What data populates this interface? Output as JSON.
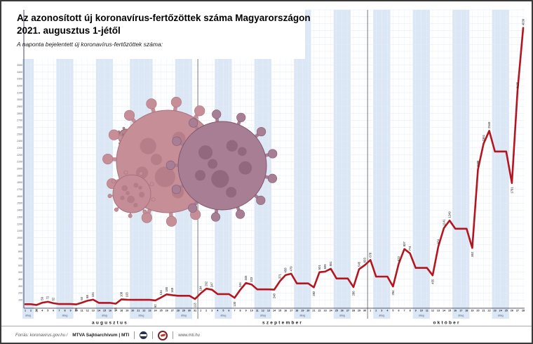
{
  "page": {
    "title_line1": "Az azonosított új koronavírus-fertőzöttek száma Magyarországon",
    "title_line2": "2021. augusztus 1-jétől",
    "subtitle": "A naponta bejelentett új koronavírus-fertőzöttek száma:"
  },
  "footer": {
    "source_prefix": "Forrás: koronavirus.gov.hu /",
    "source_bold": "MTVA Sajtóarchívum | MTI",
    "website": "www.mti.hu",
    "logos": [
      "mtva-logo",
      "mti-logo"
    ]
  },
  "colors": {
    "line": "#b5151f",
    "band": "#dbe7f4",
    "grid_h": "#e3ebf7",
    "grid_v": "#eaf1f9",
    "axis": "#56566e",
    "separator": "#6b6b6b",
    "label_text": "#111111",
    "tick_text": "#5a5a6a",
    "virus_left_body": "#c68f98",
    "virus_left_dark": "#a9717c",
    "virus_right_body": "#a77e94",
    "virus_right_dark": "#82566c"
  },
  "chart_data": {
    "type": "line",
    "title": "Az azonosított új koronavírus-fertőzöttek száma Magyarországon 2021. augusztus 1-jétől",
    "xlabel": "",
    "ylabel": "",
    "ylim": [
      0,
      4300
    ],
    "y_tick_step": 100,
    "grid": true,
    "legend": false,
    "avg_label": "átlag",
    "months": [
      {
        "name": "augusztus",
        "days": 31
      },
      {
        "name": "szeptember",
        "days": 30
      },
      {
        "name": "október",
        "days": 28
      }
    ],
    "series_note": "points = [value, data_label, is_weekend_average]; weekend/holiday spans are flat averaged segments shaded and marked 'átlag'",
    "points": [
      [
        38,
        "",
        1
      ],
      [
        38,
        "",
        1
      ],
      [
        26,
        "26",
        0
      ],
      [
        59,
        "59",
        0
      ],
      [
        72,
        "72",
        0
      ],
      [
        52,
        "52",
        0
      ],
      [
        40,
        "",
        1
      ],
      [
        40,
        "",
        1
      ],
      [
        40,
        "",
        1
      ],
      [
        35,
        "35",
        0
      ],
      [
        60,
        "60",
        0
      ],
      [
        88,
        "88",
        0
      ],
      [
        104,
        "104",
        0
      ],
      [
        57,
        "",
        1
      ],
      [
        57,
        "",
        1
      ],
      [
        57,
        "",
        1
      ],
      [
        45,
        "45",
        0
      ],
      [
        108,
        "108",
        0
      ],
      [
        103,
        "103",
        0
      ],
      [
        101,
        "",
        1
      ],
      [
        101,
        "",
        1
      ],
      [
        101,
        "",
        1
      ],
      [
        101,
        "",
        1
      ],
      [
        92,
        "92",
        0
      ],
      [
        134,
        "134",
        0
      ],
      [
        180,
        "180",
        0
      ],
      [
        169,
        "169",
        0
      ],
      [
        160,
        "",
        1
      ],
      [
        160,
        "",
        1
      ],
      [
        160,
        "",
        1
      ],
      [
        113,
        "113",
        0
      ],
      [
        194,
        "194",
        0
      ],
      [
        262,
        "262",
        0
      ],
      [
        247,
        "247",
        0
      ],
      [
        184,
        "",
        1
      ],
      [
        184,
        "",
        1
      ],
      [
        184,
        "",
        1
      ],
      [
        130,
        "130",
        0
      ],
      [
        246,
        "246",
        0
      ],
      [
        345,
        "345",
        0
      ],
      [
        323,
        "323",
        0
      ],
      [
        252,
        "",
        1
      ],
      [
        252,
        "",
        1
      ],
      [
        252,
        "",
        1
      ],
      [
        248,
        "248",
        0
      ],
      [
        371,
        "371",
        0
      ],
      [
        458,
        "458",
        0
      ],
      [
        479,
        "479",
        0
      ],
      [
        339,
        "",
        1
      ],
      [
        339,
        "",
        1
      ],
      [
        339,
        "",
        1
      ],
      [
        282,
        "282",
        0
      ],
      [
        501,
        "501",
        0
      ],
      [
        509,
        "509",
        0
      ],
      [
        551,
        "551",
        0
      ],
      [
        410,
        "",
        1
      ],
      [
        410,
        "",
        1
      ],
      [
        410,
        "",
        1
      ],
      [
        286,
        "286",
        0
      ],
      [
        545,
        "545",
        0
      ],
      [
        603,
        "603",
        0
      ],
      [
        678,
        "678",
        0
      ],
      [
        437,
        "",
        1
      ],
      [
        437,
        "",
        1
      ],
      [
        437,
        "",
        1
      ],
      [
        294,
        "294",
        0
      ],
      [
        623,
        "623",
        0
      ],
      [
        837,
        "837",
        0
      ],
      [
        774,
        "774",
        0
      ],
      [
        563,
        "",
        1
      ],
      [
        563,
        "",
        1
      ],
      [
        563,
        "",
        1
      ],
      [
        455,
        "455",
        0
      ],
      [
        874,
        "874",
        0
      ],
      [
        1141,
        "1141",
        0
      ],
      [
        1249,
        "1249",
        0
      ],
      [
        1130,
        "",
        1
      ],
      [
        1130,
        "",
        1
      ],
      [
        1130,
        "",
        1
      ],
      [
        852,
        "852",
        0
      ],
      [
        1988,
        "1988",
        0
      ],
      [
        2361,
        "2361",
        0
      ],
      [
        2548,
        "2548",
        0
      ],
      [
        2249,
        "",
        1
      ],
      [
        2249,
        "",
        1
      ],
      [
        2249,
        "",
        1
      ],
      [
        1791,
        "1791",
        0
      ],
      [
        3125,
        "3125",
        0
      ],
      [
        4039,
        "4039",
        0
      ]
    ]
  }
}
